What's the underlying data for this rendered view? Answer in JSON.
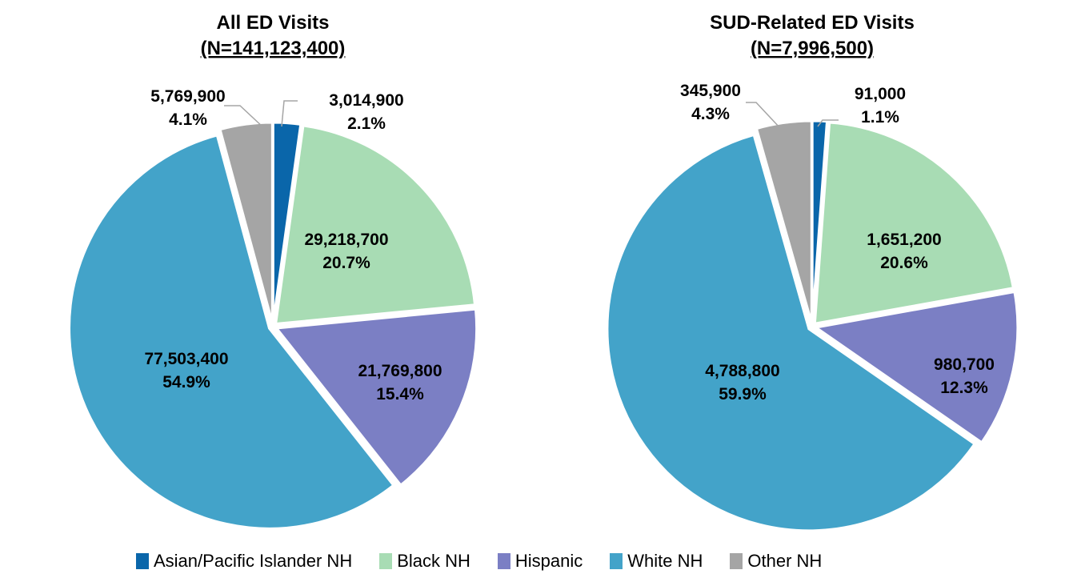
{
  "chart_data": [
    {
      "type": "pie",
      "title": "All ED Visits",
      "subtitle": "(N=141,123,400)",
      "slices": [
        {
          "category": "Asian/Pacific Islander NH",
          "value": 3014900,
          "value_label": "3,014,900",
          "percent_label": "2.1%"
        },
        {
          "category": "Black NH",
          "value": 29218700,
          "value_label": "29,218,700",
          "percent_label": "20.7%"
        },
        {
          "category": "Hispanic",
          "value": 21769800,
          "value_label": "21,769,800",
          "percent_label": "15.4%"
        },
        {
          "category": "White NH",
          "value": 77503400,
          "value_label": "77,503,400",
          "percent_label": "54.9%"
        },
        {
          "category": "Other NH",
          "value": 5769900,
          "value_label": "5,769,900",
          "percent_label": "4.1%"
        }
      ]
    },
    {
      "type": "pie",
      "title": "SUD-Related ED Visits",
      "subtitle": "(N=7,996,500)",
      "slices": [
        {
          "category": "Asian/Pacific Islander NH",
          "value": 91000,
          "value_label": "91,000",
          "percent_label": "1.1%"
        },
        {
          "category": "Black NH",
          "value": 1651200,
          "value_label": "1,651,200",
          "percent_label": "20.6%"
        },
        {
          "category": "Hispanic",
          "value": 980700,
          "value_label": "980,700",
          "percent_label": "12.3%"
        },
        {
          "category": "White NH",
          "value": 4788800,
          "value_label": "4,788,800",
          "percent_label": "59.9%"
        },
        {
          "category": "Other NH",
          "value": 345900,
          "value_label": "345,900",
          "percent_label": "4.3%"
        }
      ]
    }
  ],
  "legend": {
    "placement": "bottom",
    "items": [
      {
        "label": "Asian/Pacific Islander NH",
        "color": "#0a66aa"
      },
      {
        "label": "Black NH",
        "color": "#a8dcb4"
      },
      {
        "label": "Hispanic",
        "color": "#7b7fc4"
      },
      {
        "label": "White NH",
        "color": "#43a3c9"
      },
      {
        "label": "Other NH",
        "color": "#a5a5a5"
      }
    ]
  }
}
